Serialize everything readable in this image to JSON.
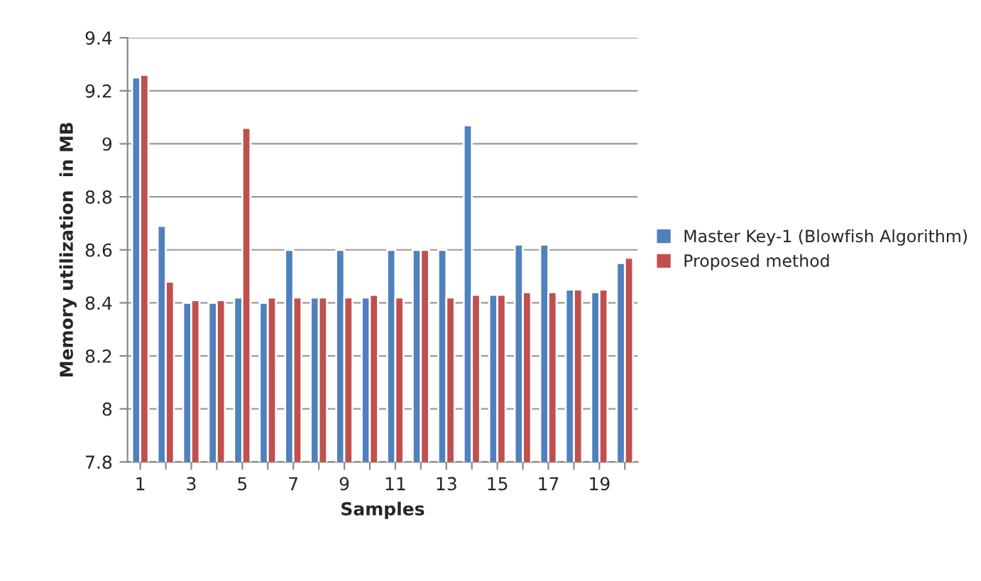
{
  "chart_data": {
    "type": "bar",
    "xlabel": "Samples",
    "ylabel": "Memory utilization  in MB",
    "categories": [
      "1",
      null,
      "3",
      null,
      "5",
      null,
      "7",
      null,
      "9",
      null,
      "11",
      null,
      "13",
      null,
      "15",
      null,
      "17",
      null,
      "19",
      null
    ],
    "series": [
      {
        "name": "Master Key-1 (Blowfish Algorithm)",
        "color": "#4f81bd",
        "values": [
          9.25,
          8.69,
          8.4,
          8.4,
          8.42,
          8.4,
          8.6,
          8.42,
          8.6,
          8.42,
          8.6,
          8.6,
          8.6,
          9.07,
          8.43,
          8.62,
          8.62,
          8.45,
          8.44,
          8.55
        ]
      },
      {
        "name": "Proposed method",
        "color": "#c0504d",
        "values": [
          9.26,
          8.48,
          8.41,
          8.41,
          9.06,
          8.42,
          8.42,
          8.42,
          8.42,
          8.43,
          8.42,
          8.6,
          8.42,
          8.43,
          8.43,
          8.44,
          8.44,
          8.45,
          8.45,
          8.57
        ]
      }
    ],
    "ylim": [
      7.8,
      9.4
    ],
    "yticks": [
      {
        "value": 7.8,
        "label": "7.8"
      },
      {
        "value": 8,
        "label": "8"
      },
      {
        "value": 8.2,
        "label": "8.2"
      },
      {
        "value": 8.4,
        "label": "8.4"
      },
      {
        "value": 8.6,
        "label": "8.6"
      },
      {
        "value": 8.8,
        "label": "8.8"
      },
      {
        "value": 9,
        "label": "9"
      },
      {
        "value": 9.2,
        "label": "9.2"
      },
      {
        "value": 9.4,
        "label": "9.4"
      }
    ],
    "grid": "y",
    "legend": "right"
  }
}
